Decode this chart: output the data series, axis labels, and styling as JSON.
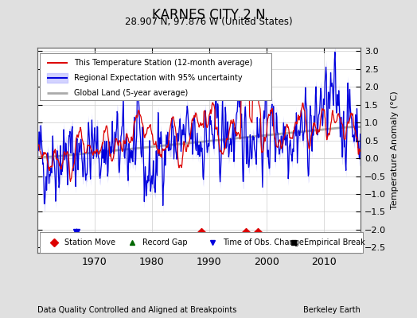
{
  "title": "KARNES CITY 2 N",
  "subtitle": "28.907 N, 97.876 W (United States)",
  "ylabel": "Temperature Anomaly (°C)",
  "footer_left": "Data Quality Controlled and Aligned at Breakpoints",
  "footer_right": "Berkeley Earth",
  "xlim": [
    1960,
    2016.5
  ],
  "ylim": [
    -2.65,
    3.1
  ],
  "yticks": [
    -2.5,
    -2,
    -1.5,
    -1,
    -0.5,
    0,
    0.5,
    1,
    1.5,
    2,
    2.5,
    3
  ],
  "xticks": [
    1970,
    1980,
    1990,
    2000,
    2010
  ],
  "bg_color": "#e0e0e0",
  "plot_bg_color": "#ffffff",
  "red_color": "#dd0000",
  "blue_color": "#0000dd",
  "shade_color": "#b0b0ff",
  "gray_color": "#aaaaaa",
  "seed": 42,
  "station_move_years": [
    1988.6,
    1996.4,
    1998.5
  ],
  "obs_change_years": [
    1966.8
  ],
  "record_gap_years": [],
  "empirical_break_years": []
}
